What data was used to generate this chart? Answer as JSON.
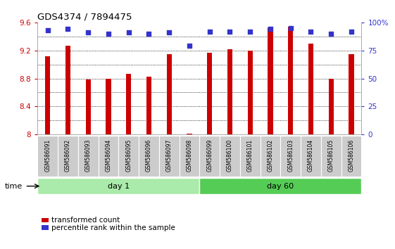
{
  "title": "GDS4374 / 7894475",
  "samples": [
    "GSM586091",
    "GSM586092",
    "GSM586093",
    "GSM586094",
    "GSM586095",
    "GSM586096",
    "GSM586097",
    "GSM586098",
    "GSM586099",
    "GSM586100",
    "GSM586101",
    "GSM586102",
    "GSM586103",
    "GSM586104",
    "GSM586105",
    "GSM586106"
  ],
  "transformed_counts": [
    9.12,
    9.27,
    8.79,
    8.8,
    8.87,
    8.83,
    9.15,
    8.01,
    9.17,
    9.22,
    9.2,
    9.53,
    9.54,
    9.3,
    8.8,
    9.15
  ],
  "percentile_ranks": [
    93,
    94,
    91,
    90,
    91,
    90,
    91,
    79,
    92,
    92,
    92,
    94,
    95,
    92,
    90,
    92
  ],
  "day1_count": 8,
  "day60_count": 8,
  "bar_color": "#cc0000",
  "dot_color": "#3333cc",
  "ylim_left": [
    8.0,
    9.6
  ],
  "ylim_right": [
    0,
    100
  ],
  "yticks_left": [
    8.0,
    8.4,
    8.8,
    9.2,
    9.6
  ],
  "ytick_labels_left": [
    "8",
    "8.4",
    "8.8",
    "9.2",
    "9.6"
  ],
  "yticks_right": [
    0,
    25,
    50,
    75,
    100
  ],
  "ytick_labels_right": [
    "0",
    "25",
    "50",
    "75",
    "100%"
  ],
  "grid_y": [
    8.2,
    8.4,
    8.6,
    8.8,
    9.0,
    9.2,
    9.4
  ],
  "day1_label": "day 1",
  "day60_label": "day 60",
  "legend_items": [
    "transformed count",
    "percentile rank within the sample"
  ],
  "legend_colors": [
    "#cc0000",
    "#3333cc"
  ],
  "time_label": "time",
  "background_color": "#ffffff",
  "plot_bg": "#ffffff",
  "day_bar_light_green": "#aaeaaa",
  "day_bar_dark_green": "#55cc55",
  "tick_bg": "#cccccc"
}
